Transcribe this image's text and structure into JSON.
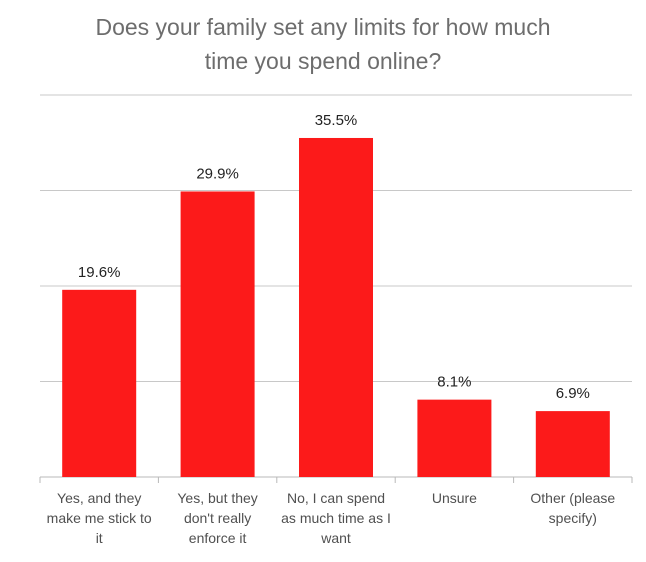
{
  "chart_data": {
    "type": "bar",
    "title_lines": [
      "Does your family set any limits for how much",
      "time you spend online?"
    ],
    "categories": [
      [
        "Yes, and they",
        "make me stick to",
        "it"
      ],
      [
        "Yes, but they",
        "don't really",
        "enforce it"
      ],
      [
        "No, I can spend",
        "as much time as I",
        "want"
      ],
      [
        "Unsure"
      ],
      [
        "Other (please",
        "specify)"
      ]
    ],
    "values": [
      19.6,
      29.9,
      35.5,
      8.1,
      6.9
    ],
    "data_labels": [
      "19.6%",
      "29.9%",
      "35.5%",
      "8.1%",
      "6.9%"
    ],
    "ylim": [
      0,
      40
    ],
    "grid": true,
    "bar_color": "#fc1a1a",
    "grid_color": "#c8c8c8",
    "axis_color": "#b8b8b8"
  }
}
